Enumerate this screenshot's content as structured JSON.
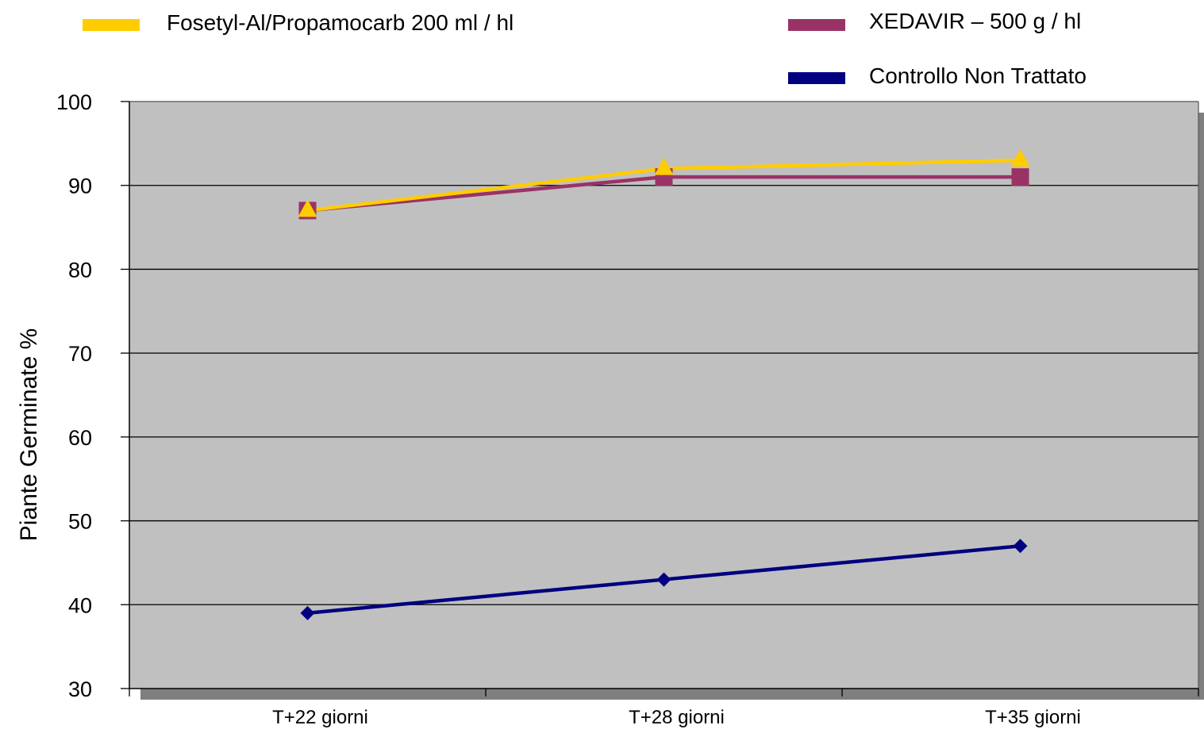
{
  "chart_data": {
    "type": "line",
    "title": "",
    "xlabel": "",
    "ylabel": "Piante Germinate %",
    "categories": [
      "T+22 giorni",
      "T+28 giorni",
      "T+35 giorni"
    ],
    "ylim": [
      30,
      100
    ],
    "yticks": [
      30,
      40,
      50,
      60,
      70,
      80,
      90,
      100
    ],
    "grid": "horizontal",
    "legend_position": "top",
    "plot_background": "#c0c0c0",
    "series": [
      {
        "name": "Fosetyl-Al/Propamocarb 200 ml / hl",
        "values": [
          87,
          92,
          93
        ],
        "color": "#ffcc00",
        "marker": "triangle"
      },
      {
        "name": "XEDAVIR – 500 g / hl",
        "values": [
          87,
          91,
          91
        ],
        "color": "#993366",
        "marker": "square"
      },
      {
        "name": "Controllo Non Trattato",
        "values": [
          39,
          43,
          47
        ],
        "color": "#000080",
        "marker": "diamond"
      }
    ]
  }
}
